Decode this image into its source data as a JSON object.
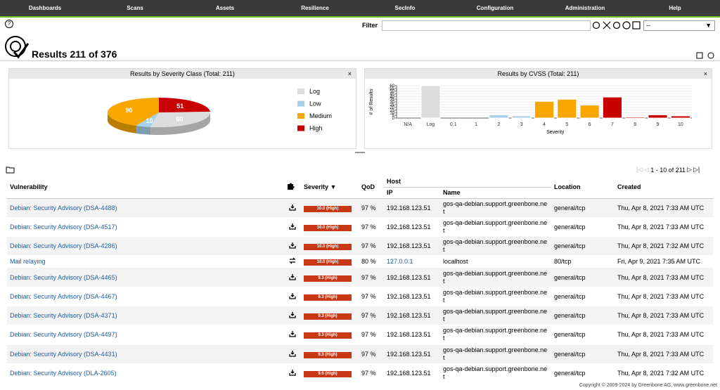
{
  "nav": [
    "Dashboards",
    "Scans",
    "Assets",
    "Resilience",
    "SecInfo",
    "Configuration",
    "Administration",
    "Help"
  ],
  "filter": {
    "label": "Filter",
    "select": "--"
  },
  "title": "Results 211 of 376",
  "chart_data": [
    {
      "type": "pie",
      "title": "Results by Severity Class (Total: 211)",
      "categories": [
        "Log",
        "Low",
        "Medium",
        "High"
      ],
      "values": [
        60,
        10,
        90,
        51
      ],
      "colors": [
        "#dcdcdc",
        "#a6d0e9",
        "#f8a700",
        "#c80000"
      ]
    },
    {
      "type": "bar",
      "title": "Results by CVSS (Total: 211)",
      "ylabel": "# of Results",
      "xlabel": "Severity",
      "categories": [
        "N/A",
        "Log",
        "0.1",
        "1",
        "2",
        "3",
        "4",
        "5",
        "6",
        "7",
        "8",
        "9",
        "10"
      ],
      "values": [
        0,
        60,
        0,
        0,
        6,
        4,
        31,
        35,
        24,
        39,
        2,
        6,
        4
      ],
      "colors": [
        "#999999",
        "#dcdcdc",
        "#a6d0e9",
        "#a6d0e9",
        "#a6d0e9",
        "#a6d0e9",
        "#f8a700",
        "#f8a700",
        "#f8a700",
        "#c80000",
        "#c80000",
        "#c80000",
        "#c80000"
      ],
      "ylim": [
        0,
        60
      ],
      "yticks": [
        0,
        5,
        10,
        15,
        20,
        25,
        30,
        35,
        40,
        45,
        50,
        55,
        60
      ],
      "grid": true
    }
  ],
  "table": {
    "pagination": "1 - 10 of 211",
    "headers": {
      "vulnerability": "Vulnerability",
      "severity": "Severity ▼",
      "qod": "QoD",
      "host": "Host",
      "ip": "IP",
      "name": "Name",
      "location": "Location",
      "created": "Created"
    },
    "rows": [
      [
        "Debian: Security Advisory (DSA-4488)",
        "10.0 (High)",
        "97 %",
        "192.168.123.51",
        "gos-qa-debian.support.greenbone.net",
        "general/tcp",
        "Thu, Apr 8, 2021 7:33 AM UTC"
      ],
      [
        "Debian: Security Advisory (DSA-4517)",
        "10.0 (High)",
        "97 %",
        "192.168.123.51",
        "gos-qa-debian.support.greenbone.net",
        "general/tcp",
        "Thu, Apr 8, 2021 7:33 AM UTC"
      ],
      [
        "Debian: Security Advisory (DSA-4286)",
        "10.0 (High)",
        "97 %",
        "192.168.123.51",
        "gos-qa-debian.support.greenbone.net",
        "general/tcp",
        "Thu, Apr 8, 2021 7:32 AM UTC"
      ],
      [
        "Mail relaying",
        "10.0 (High)",
        "80 %",
        "127.0.0.1",
        "localhost",
        "80/tcp",
        "Fri, Apr 9, 2021 7:35 AM UTC"
      ],
      [
        "Debian: Security Advisory (DSA-4465)",
        "9.3 (High)",
        "97 %",
        "192.168.123.51",
        "gos-qa-debian.support.greenbone.net",
        "general/tcp",
        "Thu, Apr 8, 2021 7:33 AM UTC"
      ],
      [
        "Debian: Security Advisory (DSA-4467)",
        "9.3 (High)",
        "97 %",
        "192.168.123.51",
        "gos-qa-debian.support.greenbone.net",
        "general/tcp",
        "Thu, Apr 8, 2021 7:33 AM UTC"
      ],
      [
        "Debian: Security Advisory (DSA-4371)",
        "9.3 (High)",
        "97 %",
        "192.168.123.51",
        "gos-qa-debian.support.greenbone.net",
        "general/tcp",
        "Thu, Apr 8, 2021 7:33 AM UTC"
      ],
      [
        "Debian: Security Advisory (DSA-4497)",
        "9.3 (High)",
        "97 %",
        "192.168.123.51",
        "gos-qa-debian.support.greenbone.net",
        "general/tcp",
        "Thu, Apr 8, 2021 7:33 AM UTC"
      ],
      [
        "Debian: Security Advisory (DSA-4431)",
        "9.3 (High)",
        "97 %",
        "192.168.123.51",
        "gos-qa-debian.support.greenbone.net",
        "general/tcp",
        "Thu, Apr 8, 2021 7:33 AM UTC"
      ],
      [
        "Debian: Security Advisory (DLA-2605)",
        "9.0 (High)",
        "97 %",
        "192.168.123.51",
        "gos-qa-debian.support.greenbone.net",
        "general/tcp",
        "Thu, Apr 8, 2021 7:32 AM UTC"
      ]
    ]
  },
  "footer": "Copyright © 2009-2024 by Greenbone AG, www.greenbone.net"
}
